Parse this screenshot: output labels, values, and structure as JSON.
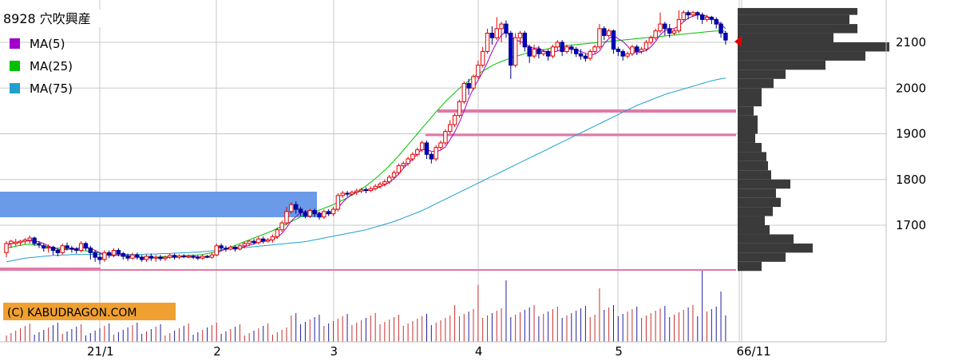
{
  "title": "8928 穴吹興産",
  "legend": [
    {
      "label": "MA(5)",
      "color": "#a000c8"
    },
    {
      "label": "MA(25)",
      "color": "#00c000"
    },
    {
      "label": "MA(75)",
      "color": "#1fa0d0"
    }
  ],
  "watermark": "(C) KABUDRAGON.COM",
  "last_date_label": "6/11",
  "chart_data": {
    "type": "candlestick",
    "title": "8928 穴吹興産",
    "ylim": [
      1590,
      2180
    ],
    "yticks": [
      1700,
      1800,
      1900,
      2000,
      2100
    ],
    "xticks": [
      "21/1",
      "2",
      "3",
      "4",
      "5",
      "6"
    ],
    "xtick_positions_bar_index": [
      20,
      45,
      70,
      101,
      131,
      157
    ],
    "candles": [
      [
        1640,
        1660,
        1630,
        1665
      ],
      [
        1660,
        1665,
        1650,
        1668
      ],
      [
        1660,
        1663,
        1655,
        1670
      ],
      [
        1662,
        1665,
        1655,
        1668
      ],
      [
        1665,
        1668,
        1658,
        1672
      ],
      [
        1667,
        1672,
        1660,
        1678
      ],
      [
        1672,
        1660,
        1655,
        1675
      ],
      [
        1660,
        1658,
        1650,
        1665
      ],
      [
        1655,
        1650,
        1642,
        1660
      ],
      [
        1650,
        1652,
        1640,
        1658
      ],
      [
        1652,
        1645,
        1635,
        1655
      ],
      [
        1645,
        1640,
        1632,
        1650
      ],
      [
        1640,
        1655,
        1636,
        1660
      ],
      [
        1655,
        1650,
        1645,
        1662
      ],
      [
        1650,
        1648,
        1640,
        1655
      ],
      [
        1648,
        1645,
        1638,
        1652
      ],
      [
        1645,
        1660,
        1640,
        1665
      ],
      [
        1660,
        1650,
        1645,
        1664
      ],
      [
        1650,
        1640,
        1625,
        1655
      ],
      [
        1640,
        1630,
        1620,
        1645
      ],
      [
        1630,
        1625,
        1615,
        1640
      ],
      [
        1625,
        1640,
        1620,
        1645
      ],
      [
        1640,
        1635,
        1628,
        1645
      ],
      [
        1635,
        1645,
        1630,
        1650
      ],
      [
        1645,
        1638,
        1632,
        1650
      ],
      [
        1638,
        1632,
        1625,
        1642
      ],
      [
        1632,
        1628,
        1622,
        1638
      ],
      [
        1628,
        1635,
        1625,
        1640
      ],
      [
        1635,
        1630,
        1625,
        1640
      ],
      [
        1630,
        1625,
        1620,
        1635
      ],
      [
        1625,
        1632,
        1620,
        1636
      ],
      [
        1632,
        1628,
        1622,
        1638
      ],
      [
        1628,
        1630,
        1620,
        1635
      ],
      [
        1630,
        1627,
        1622,
        1635
      ],
      [
        1627,
        1630,
        1622,
        1634
      ],
      [
        1630,
        1634,
        1626,
        1638
      ],
      [
        1634,
        1630,
        1625,
        1638
      ],
      [
        1630,
        1633,
        1626,
        1636
      ],
      [
        1633,
        1631,
        1628,
        1637
      ],
      [
        1631,
        1632,
        1628,
        1636
      ],
      [
        1632,
        1630,
        1626,
        1636
      ],
      [
        1630,
        1628,
        1624,
        1634
      ],
      [
        1628,
        1632,
        1625,
        1636
      ],
      [
        1632,
        1630,
        1628,
        1635
      ],
      [
        1630,
        1635,
        1627,
        1640
      ],
      [
        1635,
        1655,
        1632,
        1660
      ],
      [
        1655,
        1650,
        1645,
        1660
      ],
      [
        1650,
        1648,
        1642,
        1655
      ],
      [
        1648,
        1652,
        1645,
        1656
      ],
      [
        1652,
        1648,
        1642,
        1656
      ],
      [
        1648,
        1655,
        1645,
        1658
      ],
      [
        1655,
        1660,
        1650,
        1664
      ],
      [
        1660,
        1665,
        1655,
        1668
      ],
      [
        1665,
        1662,
        1658,
        1670
      ],
      [
        1662,
        1670,
        1658,
        1675
      ],
      [
        1670,
        1665,
        1660,
        1675
      ],
      [
        1665,
        1668,
        1662,
        1672
      ],
      [
        1668,
        1675,
        1662,
        1680
      ],
      [
        1675,
        1690,
        1670,
        1695
      ],
      [
        1690,
        1705,
        1685,
        1710
      ],
      [
        1705,
        1730,
        1700,
        1740
      ],
      [
        1730,
        1745,
        1725,
        1750
      ],
      [
        1745,
        1735,
        1725,
        1752
      ],
      [
        1735,
        1728,
        1720,
        1740
      ],
      [
        1728,
        1720,
        1715,
        1733
      ],
      [
        1720,
        1732,
        1716,
        1736
      ],
      [
        1732,
        1725,
        1718,
        1736
      ],
      [
        1725,
        1718,
        1712,
        1730
      ],
      [
        1718,
        1730,
        1714,
        1734
      ],
      [
        1730,
        1725,
        1720,
        1735
      ],
      [
        1725,
        1735,
        1720,
        1740
      ],
      [
        1735,
        1765,
        1730,
        1770
      ],
      [
        1765,
        1770,
        1760,
        1775
      ],
      [
        1770,
        1768,
        1762,
        1775
      ],
      [
        1768,
        1772,
        1764,
        1776
      ],
      [
        1772,
        1775,
        1766,
        1780
      ],
      [
        1775,
        1778,
        1770,
        1782
      ],
      [
        1778,
        1776,
        1770,
        1783
      ],
      [
        1776,
        1780,
        1772,
        1785
      ],
      [
        1780,
        1785,
        1776,
        1790
      ],
      [
        1785,
        1790,
        1780,
        1795
      ],
      [
        1790,
        1795,
        1785,
        1800
      ],
      [
        1795,
        1805,
        1790,
        1810
      ],
      [
        1805,
        1815,
        1800,
        1820
      ],
      [
        1815,
        1830,
        1810,
        1835
      ],
      [
        1830,
        1835,
        1825,
        1840
      ],
      [
        1835,
        1845,
        1830,
        1850
      ],
      [
        1845,
        1855,
        1840,
        1860
      ],
      [
        1855,
        1865,
        1850,
        1870
      ],
      [
        1865,
        1880,
        1860,
        1885
      ],
      [
        1880,
        1855,
        1845,
        1885
      ],
      [
        1855,
        1845,
        1835,
        1860
      ],
      [
        1845,
        1870,
        1840,
        1875
      ],
      [
        1870,
        1880,
        1865,
        1885
      ],
      [
        1880,
        1905,
        1875,
        1910
      ],
      [
        1905,
        1920,
        1900,
        1930
      ],
      [
        1920,
        1940,
        1915,
        1945
      ],
      [
        1940,
        1970,
        1935,
        1975
      ],
      [
        1970,
        2010,
        1965,
        2015
      ],
      [
        2010,
        2000,
        1985,
        2020
      ],
      [
        2000,
        2025,
        1995,
        2030
      ],
      [
        2025,
        2050,
        2020,
        2060
      ],
      [
        2050,
        2080,
        2045,
        2090
      ],
      [
        2080,
        2120,
        2075,
        2130
      ],
      [
        2120,
        2110,
        2095,
        2135
      ],
      [
        2110,
        2130,
        2105,
        2155
      ],
      [
        2130,
        2140,
        2100,
        2145
      ],
      [
        2140,
        2120,
        2110,
        2148
      ],
      [
        2120,
        2050,
        2020,
        2125
      ],
      [
        2050,
        2110,
        2045,
        2120
      ],
      [
        2110,
        2120,
        2095,
        2125
      ],
      [
        2120,
        2090,
        2080,
        2125
      ],
      [
        2090,
        2070,
        2055,
        2095
      ],
      [
        2070,
        2085,
        2065,
        2095
      ],
      [
        2085,
        2075,
        2065,
        2092
      ],
      [
        2075,
        2080,
        2070,
        2085
      ],
      [
        2080,
        2070,
        2060,
        2085
      ],
      [
        2070,
        2090,
        2065,
        2095
      ],
      [
        2090,
        2100,
        2080,
        2105
      ],
      [
        2100,
        2080,
        2070,
        2105
      ],
      [
        2080,
        2090,
        2075,
        2095
      ],
      [
        2090,
        2085,
        2075,
        2094
      ],
      [
        2085,
        2075,
        2068,
        2090
      ],
      [
        2075,
        2070,
        2062,
        2085
      ],
      [
        2070,
        2065,
        2058,
        2075
      ],
      [
        2065,
        2080,
        2060,
        2085
      ],
      [
        2080,
        2090,
        2075,
        2095
      ],
      [
        2090,
        2130,
        2085,
        2140
      ],
      [
        2130,
        2115,
        2105,
        2135
      ],
      [
        2115,
        2125,
        2110,
        2130
      ],
      [
        2125,
        2085,
        2075,
        2128
      ],
      [
        2085,
        2080,
        2070,
        2090
      ],
      [
        2080,
        2070,
        2060,
        2085
      ],
      [
        2070,
        2075,
        2065,
        2080
      ],
      [
        2075,
        2090,
        2070,
        2095
      ],
      [
        2090,
        2080,
        2072,
        2095
      ],
      [
        2080,
        2085,
        2075,
        2090
      ],
      [
        2085,
        2100,
        2080,
        2105
      ],
      [
        2100,
        2110,
        2095,
        2115
      ],
      [
        2110,
        2125,
        2105,
        2130
      ],
      [
        2125,
        2140,
        2120,
        2165
      ],
      [
        2140,
        2130,
        2115,
        2145
      ],
      [
        2130,
        2120,
        2110,
        2140
      ],
      [
        2120,
        2125,
        2115,
        2130
      ],
      [
        2125,
        2150,
        2120,
        2170
      ],
      [
        2150,
        2165,
        2145,
        2170
      ],
      [
        2165,
        2160,
        2150,
        2170
      ],
      [
        2160,
        2165,
        2155,
        2168
      ],
      [
        2165,
        2160,
        2150,
        2168
      ],
      [
        2160,
        2150,
        2140,
        2165
      ],
      [
        2150,
        2155,
        2145,
        2160
      ],
      [
        2155,
        2150,
        2140,
        2158
      ],
      [
        2150,
        2140,
        2130,
        2155
      ],
      [
        2140,
        2120,
        2110,
        2145
      ],
      [
        2120,
        2105,
        2095,
        2125
      ]
    ],
    "ma5": [
      1655,
      1660,
      1662,
      1664,
      1665,
      1666,
      1665,
      1664,
      1660,
      1655,
      1650,
      1647,
      1646,
      1647,
      1648,
      1649,
      1651,
      1652,
      1650,
      1645,
      1640,
      1636,
      1634,
      1633,
      1636,
      1636,
      1634,
      1632,
      1630,
      1630,
      1630,
      1630,
      1629,
      1629,
      1629,
      1630,
      1630,
      1630,
      1631,
      1632,
      1632,
      1631,
      1630,
      1630,
      1631,
      1638,
      1644,
      1648,
      1650,
      1651,
      1651,
      1653,
      1656,
      1659,
      1663,
      1665,
      1666,
      1669,
      1674,
      1682,
      1695,
      1709,
      1719,
      1727,
      1730,
      1731,
      1730,
      1727,
      1725,
      1726,
      1727,
      1738,
      1750,
      1760,
      1768,
      1773,
      1775,
      1776,
      1777,
      1780,
      1784,
      1788,
      1794,
      1802,
      1812,
      1824,
      1835,
      1845,
      1856,
      1866,
      1864,
      1862,
      1861,
      1864,
      1871,
      1887,
      1904,
      1925,
      1950,
      1977,
      1999,
      2017,
      2035,
      2056,
      2080,
      2100,
      2116,
      2124,
      2110,
      2106,
      2102,
      2098,
      2090,
      2087,
      2088,
      2081,
      2080,
      2078,
      2081,
      2085,
      2088,
      2085,
      2083,
      2080,
      2076,
      2072,
      2074,
      2081,
      2097,
      2108,
      2115,
      2108,
      2102,
      2092,
      2080,
      2077,
      2079,
      2082,
      2090,
      2102,
      2116,
      2126,
      2129,
      2130,
      2136,
      2145,
      2153,
      2157,
      2160,
      2160,
      2157,
      2152,
      2148,
      2140,
      2130
    ],
    "ma25": [
      1650,
      1652,
      1654,
      1656,
      1658,
      1658,
      1657,
      1656,
      1655,
      1653,
      1651,
      1650,
      1649,
      1648,
      1647,
      1646,
      1645,
      1644,
      1643,
      1641,
      1639,
      1637,
      1636,
      1635,
      1634,
      1633,
      1632,
      1631,
      1631,
      1630,
      1630,
      1630,
      1630,
      1631,
      1631,
      1631,
      1632,
      1632,
      1633,
      1634,
      1634,
      1635,
      1636,
      1638,
      1640,
      1642,
      1645,
      1648,
      1652,
      1656,
      1660,
      1664,
      1668,
      1672,
      1676,
      1680,
      1684,
      1688,
      1693,
      1698,
      1703,
      1708,
      1713,
      1718,
      1722,
      1726,
      1730,
      1733,
      1737,
      1741,
      1745,
      1750,
      1755,
      1760,
      1766,
      1772,
      1779,
      1786,
      1794,
      1802,
      1811,
      1820,
      1830,
      1841,
      1852,
      1864,
      1876,
      1888,
      1900,
      1912,
      1924,
      1936,
      1948,
      1959,
      1970,
      1980,
      1990,
      1999,
      2008,
      2016,
      2024,
      2031,
      2037,
      2043,
      2049,
      2054,
      2058,
      2062,
      2066,
      2069,
      2072,
      2075,
      2078,
      2080,
      2082,
      2084,
      2086,
      2088,
      2090,
      2092,
      2093,
      2094,
      2095,
      2096,
      2097,
      2098,
      2099,
      2100,
      2101,
      2102,
      2103,
      2104,
      2105,
      2106,
      2107,
      2108,
      2109,
      2110,
      2111,
      2112,
      2113,
      2114,
      2115,
      2116,
      2117,
      2118,
      2119,
      2120,
      2121,
      2122,
      2123,
      2124,
      2125,
      2125,
      2124
    ],
    "ma75": [
      1620,
      1622,
      1624,
      1626,
      1628,
      1629,
      1630,
      1631,
      1632,
      1633,
      1634,
      1634,
      1635,
      1635,
      1636,
      1636,
      1636,
      1636,
      1636,
      1636,
      1636,
      1636,
      1636,
      1636,
      1636,
      1636,
      1636,
      1636,
      1636,
      1636,
      1637,
      1637,
      1637,
      1638,
      1638,
      1638,
      1639,
      1639,
      1640,
      1640,
      1641,
      1641,
      1642,
      1643,
      1644,
      1645,
      1646,
      1647,
      1648,
      1649,
      1650,
      1651,
      1652,
      1653,
      1654,
      1655,
      1656,
      1657,
      1658,
      1659,
      1660,
      1661,
      1662,
      1663,
      1664,
      1666,
      1668,
      1670,
      1672,
      1674,
      1676,
      1678,
      1680,
      1682,
      1684,
      1686,
      1688,
      1690,
      1693,
      1696,
      1699,
      1702,
      1705,
      1708,
      1712,
      1716,
      1720,
      1724,
      1728,
      1732,
      1737,
      1742,
      1747,
      1752,
      1757,
      1762,
      1767,
      1772,
      1777,
      1782,
      1787,
      1792,
      1797,
      1802,
      1807,
      1812,
      1817,
      1822,
      1827,
      1832,
      1837,
      1842,
      1847,
      1852,
      1857,
      1862,
      1867,
      1872,
      1877,
      1882,
      1887,
      1892,
      1897,
      1902,
      1907,
      1912,
      1917,
      1922,
      1927,
      1932,
      1937,
      1942,
      1947,
      1952,
      1957,
      1962,
      1966,
      1970,
      1974,
      1978,
      1982,
      1986,
      1989,
      1992,
      1995,
      1998,
      2001,
      2004,
      2007,
      2010,
      2013,
      2016,
      2018,
      2020,
      2022
    ]
  }
}
